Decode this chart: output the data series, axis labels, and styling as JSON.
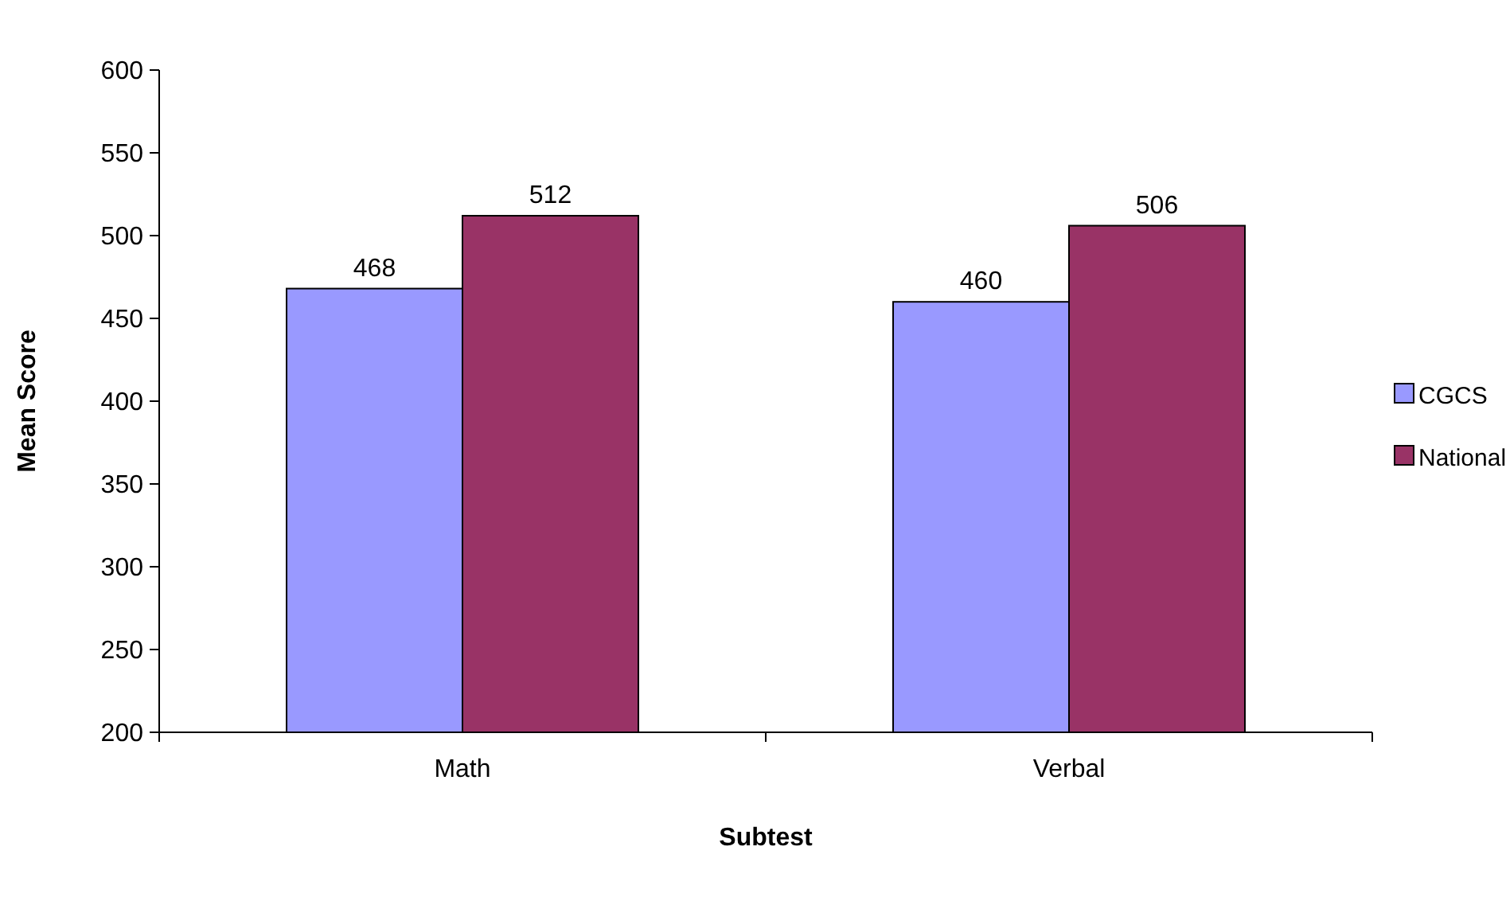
{
  "chart_data": {
    "type": "bar",
    "xlabel": "Subtest",
    "ylabel": "Mean Score",
    "categories": [
      "Math",
      "Verbal"
    ],
    "series": [
      {
        "name": "CGCS",
        "color": "#9999ff",
        "values": [
          468,
          460
        ]
      },
      {
        "name": "National",
        "color": "#993366",
        "values": [
          512,
          506
        ]
      }
    ],
    "ylim": [
      200,
      600
    ],
    "yticks": [
      200,
      250,
      300,
      350,
      400,
      450,
      500,
      550,
      600
    ],
    "data_labels": true,
    "legend": "right",
    "grid": false
  }
}
